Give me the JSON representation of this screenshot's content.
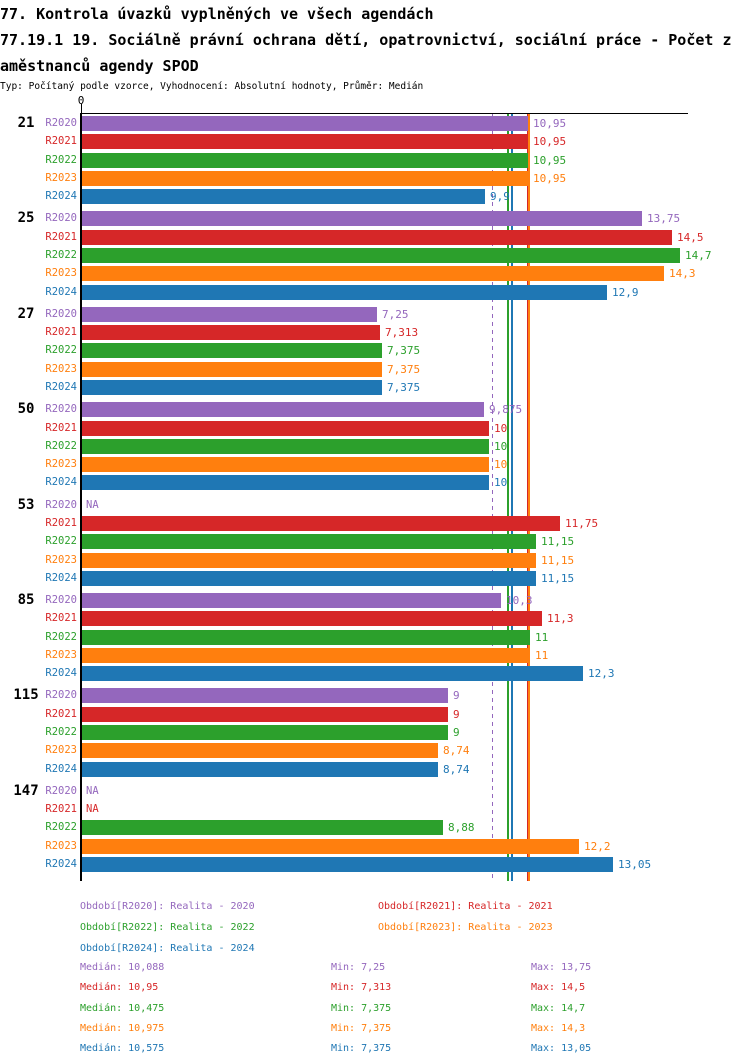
{
  "header": {
    "title_line1": "77. Kontrola úvazků vyplněných ve všech agendách",
    "title_line2": "77.19.1 19. Sociálně právní ochrana dětí, opatrovnictví, sociální práce - Počet z",
    "title_line3": "aměstnanců agendy SPOD",
    "subtitle": "Typ: Počítaný podle vzorce, Vyhodnocení: Absolutní hodnoty, Průměr: Medián"
  },
  "chart_data": {
    "type": "bar",
    "orientation": "horizontal",
    "title": "77.19.1 19. Sociálně právní ochrana dětí, opatrovnictví, sociální práce - Počet zaměstnanců agendy SPOD",
    "axis": {
      "tick_labels": [
        "0"
      ],
      "value_min": 0,
      "value_max_shown": 14.9,
      "grid": false
    },
    "series_labels": [
      "R2020",
      "R2021",
      "R2022",
      "R2023",
      "R2024"
    ],
    "series_colors": [
      "#9467bd",
      "#d62728",
      "#2ca02c",
      "#ff7f0e",
      "#1f77b4"
    ],
    "na_text": "NA",
    "groups": [
      {
        "label": "21",
        "values": [
          10.95,
          10.95,
          10.95,
          10.95,
          9.9
        ],
        "display": [
          "10,95",
          "10,95",
          "10,95",
          "10,95",
          "9,9"
        ]
      },
      {
        "label": "25",
        "values": [
          13.75,
          14.5,
          14.7,
          14.3,
          12.9
        ],
        "display": [
          "13,75",
          "14,5",
          "14,7",
          "14,3",
          "12,9"
        ]
      },
      {
        "label": "27",
        "values": [
          7.25,
          7.313,
          7.375,
          7.375,
          7.375
        ],
        "display": [
          "7,25",
          "7,313",
          "7,375",
          "7,375",
          "7,375"
        ]
      },
      {
        "label": "50",
        "values": [
          9.875,
          10,
          10,
          10,
          10
        ],
        "display": [
          "9,875",
          "10",
          "10",
          "10",
          "10"
        ]
      },
      {
        "label": "53",
        "values": [
          null,
          11.75,
          11.15,
          11.15,
          11.15
        ],
        "display": [
          "NA",
          "11,75",
          "11,15",
          "11,15",
          "11,15"
        ]
      },
      {
        "label": "85",
        "values": [
          10.3,
          11.3,
          11,
          11,
          12.3
        ],
        "display": [
          "10,3",
          "11,3",
          "11",
          "11",
          "12,3"
        ]
      },
      {
        "label": "115",
        "values": [
          9,
          9,
          9,
          8.74,
          8.74
        ],
        "display": [
          "9",
          "9",
          "9",
          "8,74",
          "8,74"
        ]
      },
      {
        "label": "147",
        "values": [
          null,
          null,
          8.88,
          12.2,
          13.05
        ],
        "display": [
          "NA",
          "NA",
          "8,88",
          "12,2",
          "13,05"
        ]
      }
    ],
    "median_lines": [
      {
        "series": "R2020",
        "value": 10.088,
        "color": "#9467bd",
        "style": "dashed"
      },
      {
        "series": "R2021",
        "value": 10.95,
        "color": "#d62728",
        "style": "solid"
      },
      {
        "series": "R2022",
        "value": 10.475,
        "color": "#2ca02c",
        "style": "solid"
      },
      {
        "series": "R2023",
        "value": 10.975,
        "color": "#ff7f0e",
        "style": "solid"
      },
      {
        "series": "R2024",
        "value": 10.575,
        "color": "#1f77b4",
        "style": "solid"
      }
    ],
    "legend_position": "bottom"
  },
  "legend": {
    "items": [
      {
        "label": "Období[R2020]: Realita - 2020",
        "color": "#9467bd"
      },
      {
        "label": "Období[R2021]: Realita - 2021",
        "color": "#d62728"
      },
      {
        "label": "Období[R2022]: Realita - 2022",
        "color": "#2ca02c"
      },
      {
        "label": "Období[R2023]: Realita - 2023",
        "color": "#ff7f0e"
      },
      {
        "label": "Období[R2024]: Realita - 2024",
        "color": "#1f77b4"
      }
    ]
  },
  "stats": {
    "rows": [
      {
        "color": "#9467bd",
        "median_label": "Medián: 10,088",
        "min_label": "Min: 7,25",
        "max_label": "Max: 13,75",
        "median": 10.088,
        "min": 7.25,
        "max": 13.75
      },
      {
        "color": "#d62728",
        "median_label": "Medián: 10,95",
        "min_label": "Min: 7,313",
        "max_label": "Max: 14,5",
        "median": 10.95,
        "min": 7.313,
        "max": 14.5
      },
      {
        "color": "#2ca02c",
        "median_label": "Medián: 10,475",
        "min_label": "Min: 7,375",
        "max_label": "Max: 14,7",
        "median": 10.475,
        "min": 7.375,
        "max": 14.7
      },
      {
        "color": "#ff7f0e",
        "median_label": "Medián: 10,975",
        "min_label": "Min: 7,375",
        "max_label": "Max: 14,3",
        "median": 10.975,
        "min": 7.375,
        "max": 14.3
      },
      {
        "color": "#1f77b4",
        "median_label": "Medián: 10,575",
        "min_label": "Min: 7,375",
        "max_label": "Max: 13,05",
        "median": 10.575,
        "min": 7.375,
        "max": 13.05
      }
    ]
  }
}
